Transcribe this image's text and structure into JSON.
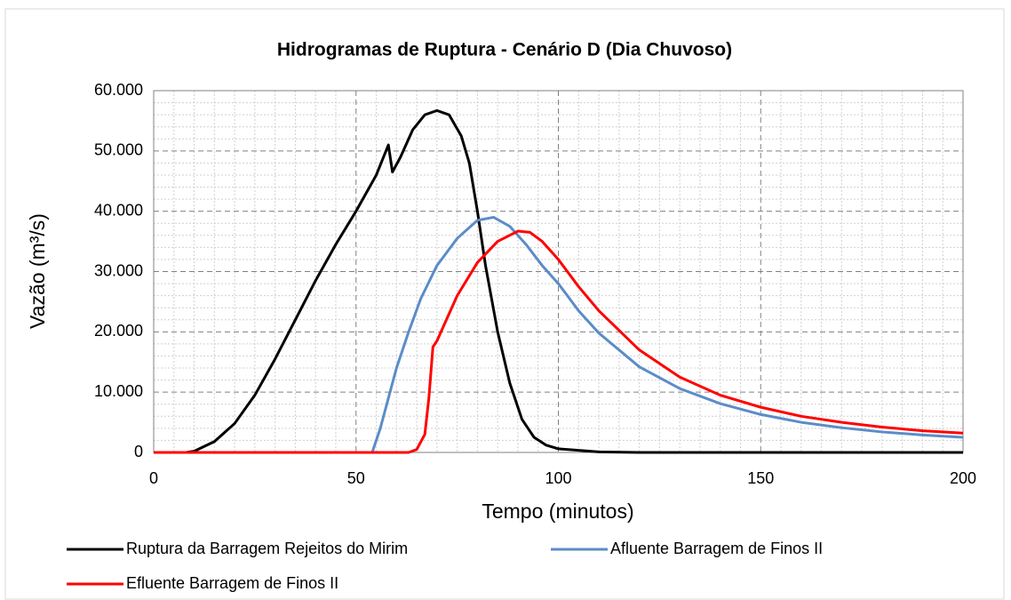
{
  "chart_data": {
    "type": "line",
    "title": "Hidrogramas de Ruptura - Cenário D (Dia Chuvoso)",
    "x_label": "Tempo  (minutos)",
    "y_label": "Vazão  (m³/s)",
    "xlim": [
      0,
      200
    ],
    "xticks": [
      0,
      50,
      100,
      150,
      200
    ],
    "ylim": [
      0,
      60000
    ],
    "yticks": [
      0,
      {
        "value": 10000,
        "label": "10.000"
      },
      {
        "value": 20000,
        "label": "20.000"
      },
      {
        "value": 30000,
        "label": "30.000"
      },
      {
        "value": 40000,
        "label": "40.000"
      },
      {
        "value": 50000,
        "label": "50.000"
      },
      {
        "value": 60000,
        "label": "60.000"
      }
    ],
    "grid": true,
    "legend": "bottom",
    "series": [
      {
        "name": "Ruptura da Barragem Rejeitos do Mirim",
        "color": "#000000",
        "x": [
          0,
          8,
          10,
          15,
          20,
          25,
          30,
          35,
          40,
          45,
          50,
          55,
          58,
          59,
          61,
          64,
          67,
          70,
          73,
          76,
          78,
          80,
          82,
          85,
          88,
          91,
          94,
          97,
          100,
          110,
          120,
          200
        ],
        "values": [
          0,
          0,
          200,
          1800,
          4800,
          9500,
          15500,
          22000,
          28500,
          34500,
          40000,
          46000,
          51000,
          46500,
          49000,
          53500,
          56000,
          56700,
          56000,
          52500,
          48000,
          40000,
          31000,
          20000,
          11500,
          5500,
          2500,
          1200,
          600,
          100,
          0,
          0
        ]
      },
      {
        "name": "Afluente Barragem de Finos II",
        "color": "#5b8cc8",
        "x": [
          0,
          54,
          56,
          58,
          60,
          63,
          66,
          70,
          75,
          80,
          84,
          88,
          92,
          96,
          100,
          105,
          110,
          120,
          130,
          140,
          150,
          160,
          170,
          180,
          190,
          200
        ],
        "values": [
          0,
          0,
          4000,
          9000,
          14000,
          20000,
          25500,
          31000,
          35500,
          38500,
          39000,
          37500,
          34500,
          31000,
          28000,
          23500,
          19800,
          14200,
          10600,
          8100,
          6300,
          5000,
          4100,
          3400,
          2900,
          2500
        ]
      },
      {
        "name": "Efluente Barragem de Finos II",
        "color": "#ff0000",
        "x": [
          0,
          63,
          65,
          67,
          68,
          69,
          70,
          72,
          75,
          80,
          85,
          90,
          93,
          96,
          100,
          105,
          110,
          120,
          130,
          140,
          150,
          160,
          170,
          180,
          190,
          200
        ],
        "values": [
          0,
          0,
          500,
          3000,
          9000,
          17500,
          18500,
          21500,
          26000,
          31500,
          35000,
          36700,
          36500,
          35000,
          32000,
          27500,
          23500,
          17000,
          12500,
          9500,
          7500,
          6000,
          5000,
          4200,
          3600,
          3200
        ]
      }
    ]
  }
}
